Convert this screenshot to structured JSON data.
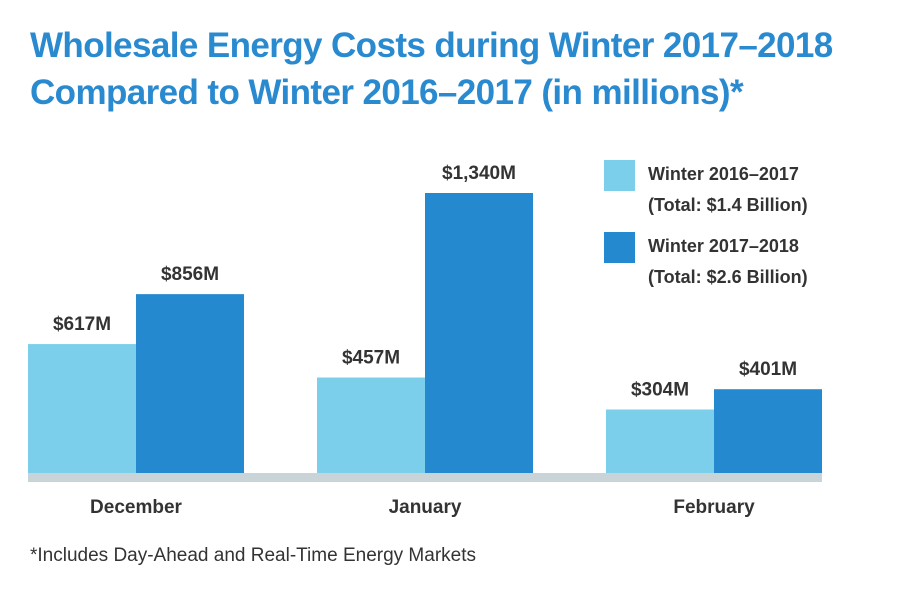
{
  "title_lines": [
    "Wholesale Energy Costs during Winter 2017–2018",
    "Compared to Winter 2016–2017 (in millions)*"
  ],
  "footnote": "*Includes Day-Ahead and Real-Time Energy Markets",
  "colors": {
    "title": "#2a8ad0",
    "series_2016_2017": "#7ccfeb",
    "series_2017_2018": "#2589d0",
    "baseline": "#c9d4d9",
    "text": "#333333"
  },
  "chart_data": {
    "type": "bar",
    "categories": [
      "December",
      "January",
      "February"
    ],
    "series": [
      {
        "name": "Winter 2016–2017",
        "legend_lines": [
          "Winter 2016–2017",
          "(Total: $1.4 Billion)"
        ],
        "values": [
          617,
          457,
          304
        ],
        "labels": [
          "$617M",
          "$457M",
          "$304M"
        ]
      },
      {
        "name": "Winter 2017–2018",
        "legend_lines": [
          "Winter 2017–2018",
          "(Total: $2.6 Billion)"
        ],
        "values": [
          856,
          1340,
          401
        ],
        "labels": [
          "$856M",
          "$1,340M",
          "$401M"
        ]
      }
    ],
    "ylim": [
      0,
      1340
    ],
    "legend_position": "top-right",
    "grid": false
  }
}
